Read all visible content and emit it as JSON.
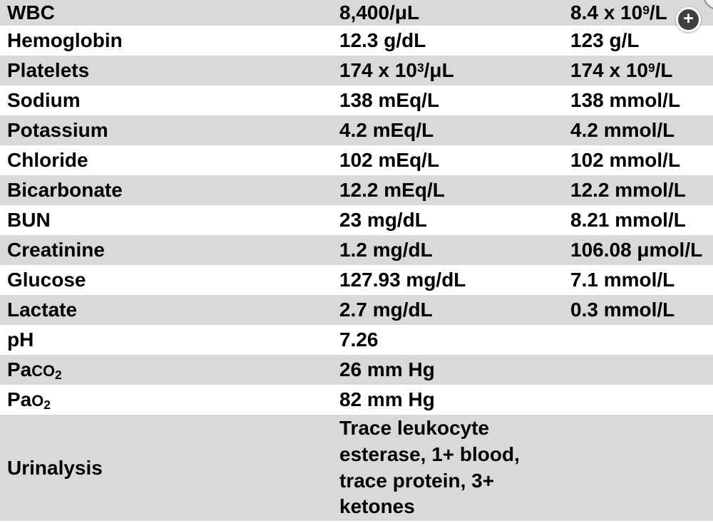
{
  "colors": {
    "row_shaded": "#d9d9d9",
    "row_plain": "#ffffff",
    "text": "#000000",
    "zoom_button_bg": "#3f3f3f",
    "zoom_button_fg": "#ffffff"
  },
  "viewer": {
    "zoom_in_button": {
      "icon": "plus-icon",
      "glyph": "+"
    }
  },
  "table": {
    "rows": [
      {
        "test": [
          {
            "text": "WBC"
          }
        ],
        "conventional": [
          {
            "text": "8,400/μL"
          }
        ],
        "si": [
          {
            "text": "8.4 x 10"
          },
          {
            "sup": "9"
          },
          {
            "text": "/L"
          }
        ]
      },
      {
        "test": [
          {
            "text": "Hemoglobin"
          }
        ],
        "conventional": [
          {
            "text": "12.3 g/dL"
          }
        ],
        "si": [
          {
            "text": "123 g/L"
          }
        ]
      },
      {
        "test": [
          {
            "text": "Platelets"
          }
        ],
        "conventional": [
          {
            "text": "174 x 10"
          },
          {
            "sup": "3"
          },
          {
            "text": "/μL"
          }
        ],
        "si": [
          {
            "text": "174 x 10"
          },
          {
            "sup": "9"
          },
          {
            "text": "/L"
          }
        ]
      },
      {
        "test": [
          {
            "text": "Sodium"
          }
        ],
        "conventional": [
          {
            "text": "138 mEq/L"
          }
        ],
        "si": [
          {
            "text": "138 mmol/L"
          }
        ]
      },
      {
        "test": [
          {
            "text": "Potassium"
          }
        ],
        "conventional": [
          {
            "text": "4.2 mEq/L"
          }
        ],
        "si": [
          {
            "text": "4.2 mmol/L"
          }
        ]
      },
      {
        "test": [
          {
            "text": "Chloride"
          }
        ],
        "conventional": [
          {
            "text": "102 mEq/L"
          }
        ],
        "si": [
          {
            "text": "102 mmol/L"
          }
        ]
      },
      {
        "test": [
          {
            "text": "Bicarbonate"
          }
        ],
        "conventional": [
          {
            "text": "12.2 mEq/L"
          }
        ],
        "si": [
          {
            "text": "12.2 mmol/L"
          }
        ]
      },
      {
        "test": [
          {
            "text": "BUN"
          }
        ],
        "conventional": [
          {
            "text": "23 mg/dL"
          }
        ],
        "si": [
          {
            "text": "8.21 mmol/L"
          }
        ]
      },
      {
        "test": [
          {
            "text": "Creatinine"
          }
        ],
        "conventional": [
          {
            "text": "1.2 mg/dL"
          }
        ],
        "si": [
          {
            "text": "106.08 μmol/L"
          }
        ]
      },
      {
        "test": [
          {
            "text": "Glucose"
          }
        ],
        "conventional": [
          {
            "text": "127.93 mg/dL"
          }
        ],
        "si": [
          {
            "text": "7.1 mmol/L"
          }
        ]
      },
      {
        "test": [
          {
            "text": "Lactate"
          }
        ],
        "conventional": [
          {
            "text": "2.7 mg/dL"
          }
        ],
        "si": [
          {
            "text": "0.3 mmol/L"
          }
        ]
      },
      {
        "test": [
          {
            "text": "pH"
          }
        ],
        "conventional": [
          {
            "text": "7.26"
          }
        ],
        "si": []
      },
      {
        "test": [
          {
            "text": "Pa"
          },
          {
            "smallcaps": "CO"
          },
          {
            "sub": "2"
          }
        ],
        "conventional": [
          {
            "text": "26 mm Hg"
          }
        ],
        "si": []
      },
      {
        "test": [
          {
            "text": "Pa"
          },
          {
            "smallcaps": "O"
          },
          {
            "sub": "2"
          }
        ],
        "conventional": [
          {
            "text": "82 mm Hg"
          }
        ],
        "si": []
      },
      {
        "test": [
          {
            "text": "Urinalysis"
          }
        ],
        "conventional": [
          {
            "text": "Trace leukocyte esterase, 1+ blood, trace protein, 3+ ketones"
          }
        ],
        "si": [],
        "multiline": true
      }
    ]
  }
}
